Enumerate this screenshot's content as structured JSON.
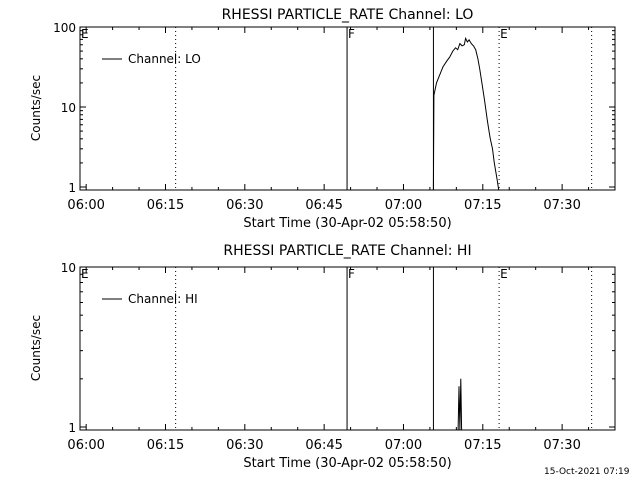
{
  "footer": {
    "timestamp": "15-Oct-2021 07:19"
  },
  "chart_data": [
    {
      "type": "line",
      "title": "RHESSI PARTICLE_RATE Channel: LO",
      "xlabel": "Start Time (30-Apr-02 05:58:50)",
      "ylabel": "Counts/sec",
      "yscale": "log",
      "xlim": [
        "05:58:50",
        "07:40:00"
      ],
      "ylim": [
        0.9,
        100
      ],
      "xticks": [
        "06:00",
        "06:15",
        "06:30",
        "06:45",
        "07:00",
        "07:15",
        "07:30"
      ],
      "yticks": [
        "1",
        "10",
        "100"
      ],
      "legend": {
        "position": "top-left",
        "label": "Channel: LO"
      },
      "series": [
        {
          "name": "Channel: LO",
          "points": [
            [
              "07:05:40",
              0.9
            ],
            [
              "07:05:45",
              14
            ],
            [
              "07:06:15",
              20
            ],
            [
              "07:06:50",
              25
            ],
            [
              "07:07:30",
              32
            ],
            [
              "07:08:15",
              38
            ],
            [
              "07:08:45",
              42
            ],
            [
              "07:09:20",
              50
            ],
            [
              "07:09:50",
              55
            ],
            [
              "07:10:15",
              52
            ],
            [
              "07:10:40",
              62
            ],
            [
              "07:11:05",
              58
            ],
            [
              "07:11:30",
              60
            ],
            [
              "07:11:45",
              72
            ],
            [
              "07:12:05",
              65
            ],
            [
              "07:12:25",
              69
            ],
            [
              "07:12:50",
              62
            ],
            [
              "07:13:15",
              58
            ],
            [
              "07:13:40",
              52
            ],
            [
              "07:14:05",
              40
            ],
            [
              "07:14:25",
              30
            ],
            [
              "07:14:50",
              20
            ],
            [
              "07:15:20",
              12
            ],
            [
              "07:15:50",
              7
            ],
            [
              "07:16:10",
              5
            ],
            [
              "07:16:25",
              4
            ],
            [
              "07:16:50",
              3
            ],
            [
              "07:17:10",
              2
            ],
            [
              "07:17:30",
              1.5
            ],
            [
              "07:17:45",
              1.2
            ],
            [
              "07:18:00",
              0.9
            ]
          ]
        }
      ],
      "markers": [
        {
          "label": "E",
          "time": "05:58:50",
          "style": "dotted"
        },
        {
          "label": "",
          "time": "06:16:55",
          "style": "dotted"
        },
        {
          "label": "F",
          "time": "06:49:20",
          "style": "solid"
        },
        {
          "label": "",
          "time": "07:05:40",
          "style": "solid"
        },
        {
          "label": "E",
          "time": "07:18:05",
          "style": "dotted"
        },
        {
          "label": "",
          "time": "07:35:35",
          "style": "dotted"
        }
      ]
    },
    {
      "type": "line",
      "title": "RHESSI PARTICLE_RATE Channel: HI",
      "xlabel": "Start Time (30-Apr-02 05:58:50)",
      "ylabel": "Counts/sec",
      "yscale": "log",
      "xlim": [
        "05:58:50",
        "07:40:00"
      ],
      "ylim": [
        0.9,
        10
      ],
      "xticks": [
        "06:00",
        "06:15",
        "06:30",
        "06:45",
        "07:00",
        "07:15",
        "07:30"
      ],
      "yticks": [
        "1",
        "10"
      ],
      "legend": {
        "position": "top-left",
        "label": "Channel: HI"
      },
      "series": [
        {
          "name": "Channel: HI",
          "points": [
            [
              "07:10:20",
              0.9
            ],
            [
              "07:10:30",
              1.8
            ],
            [
              "07:10:40",
              0.9
            ],
            [
              "07:10:50",
              2.0
            ],
            [
              "07:11:00",
              0.9
            ]
          ]
        }
      ],
      "markers": [
        {
          "label": "E",
          "time": "05:58:50",
          "style": "dotted"
        },
        {
          "label": "",
          "time": "06:16:55",
          "style": "dotted"
        },
        {
          "label": "F",
          "time": "06:49:20",
          "style": "solid"
        },
        {
          "label": "",
          "time": "07:05:40",
          "style": "solid"
        },
        {
          "label": "E",
          "time": "07:18:05",
          "style": "dotted"
        },
        {
          "label": "",
          "time": "07:35:35",
          "style": "dotted"
        }
      ]
    }
  ]
}
